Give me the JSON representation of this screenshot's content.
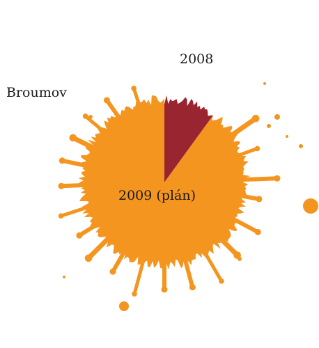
{
  "chart_data": {
    "type": "pie",
    "title": "Broumov",
    "categories": [
      "2008",
      "2009 (plán)"
    ],
    "values": [
      10,
      90
    ],
    "colors": [
      "#982530",
      "#f4951f"
    ],
    "style": "ink-splatter"
  }
}
